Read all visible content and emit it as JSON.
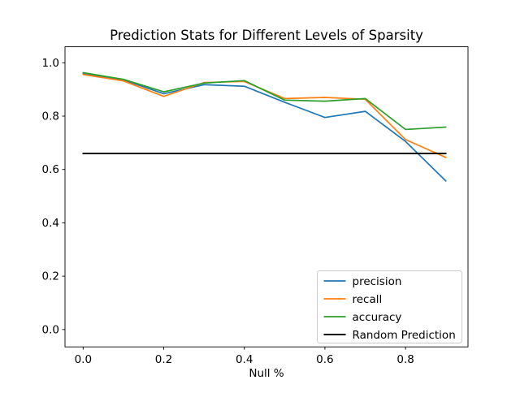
{
  "figure": {
    "background": "#ffffff"
  },
  "chart_data": {
    "type": "line",
    "title": "Prediction Stats for Different Levels of Sparsity",
    "xlabel": "Null %",
    "ylabel": "",
    "x": [
      0.0,
      0.1,
      0.2,
      0.3,
      0.4,
      0.5,
      0.6,
      0.7,
      0.8,
      0.9
    ],
    "series": [
      {
        "name": "precision",
        "color": "#1f77b4",
        "linewidth": 1.7,
        "values": [
          0.96,
          0.936,
          0.884,
          0.918,
          0.912,
          0.852,
          0.795,
          0.818,
          0.705,
          0.557
        ]
      },
      {
        "name": "recall",
        "color": "#ff7f0e",
        "linewidth": 1.7,
        "values": [
          0.956,
          0.932,
          0.874,
          0.926,
          0.93,
          0.866,
          0.87,
          0.863,
          0.712,
          0.645
        ]
      },
      {
        "name": "accuracy",
        "color": "#2ca02c",
        "linewidth": 1.7,
        "values": [
          0.963,
          0.938,
          0.891,
          0.924,
          0.933,
          0.86,
          0.856,
          0.866,
          0.75,
          0.759
        ]
      },
      {
        "name": "Random Prediction",
        "color": "#000000",
        "linewidth": 2.0,
        "values": [
          0.66,
          0.66,
          0.66,
          0.66,
          0.66,
          0.66,
          0.66,
          0.66,
          0.66,
          0.66
        ]
      }
    ],
    "xlim": [
      -0.045,
      0.955
    ],
    "ylim": [
      -0.065,
      1.06
    ],
    "xticks": [
      0.0,
      0.2,
      0.4,
      0.6,
      0.8
    ],
    "yticks": [
      0.0,
      0.2,
      0.4,
      0.6,
      0.8,
      1.0
    ],
    "tick_format_decimals": 1,
    "grid": false,
    "legend": {
      "position": "lower right",
      "entries": [
        "precision",
        "recall",
        "accuracy",
        "Random Prediction"
      ]
    },
    "axes_color": "#000000"
  }
}
